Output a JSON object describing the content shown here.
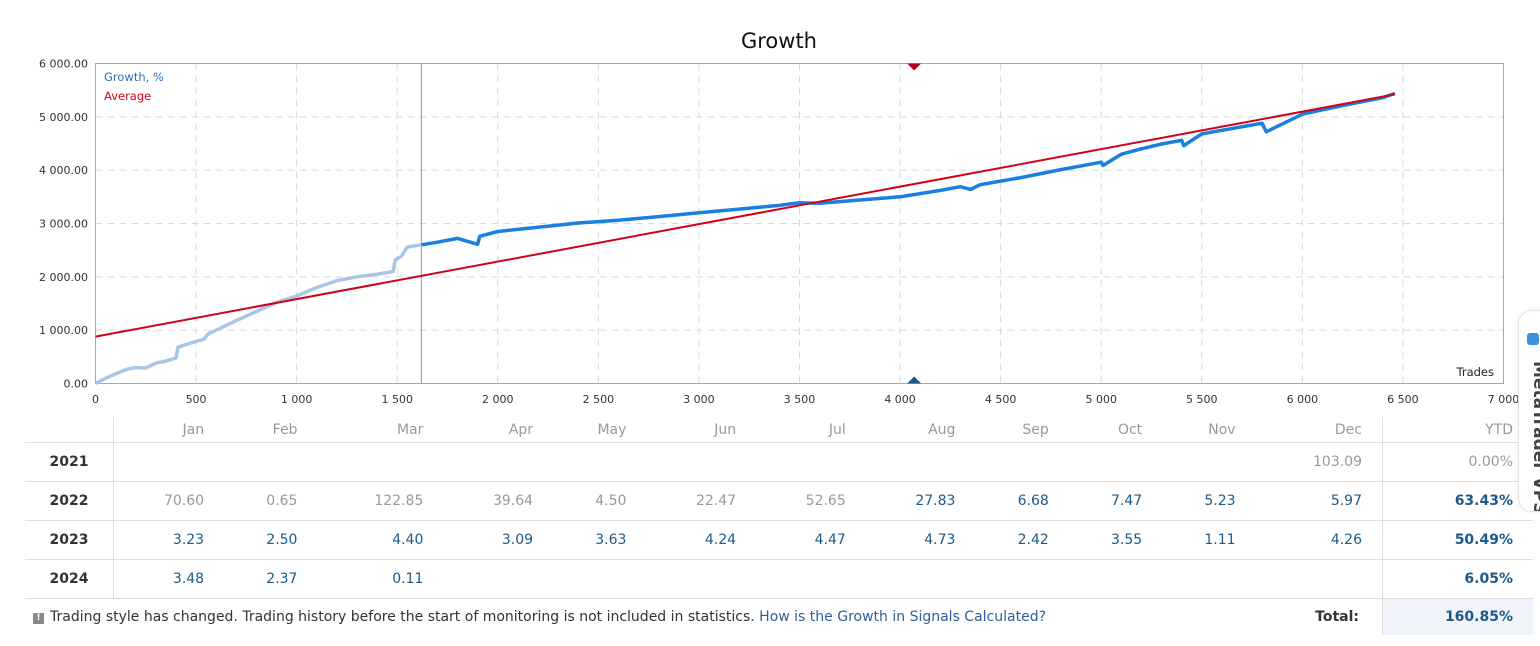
{
  "chart_data": {
    "type": "line",
    "title": "Growth",
    "xlabel": "Trades",
    "ylabel": "",
    "xlim": [
      0,
      7000
    ],
    "ylim": [
      0,
      6000
    ],
    "grid": true,
    "legend_position": "top-left",
    "x_ticks": [
      "0",
      "500",
      "1 000",
      "1 500",
      "2 000",
      "2 500",
      "3 000",
      "3 500",
      "4 000",
      "4 500",
      "5 000",
      "5 500",
      "6 000",
      "6 500",
      "7 000"
    ],
    "x_tick_values": [
      0,
      500,
      1000,
      1500,
      2000,
      2500,
      3000,
      3500,
      4000,
      4500,
      5000,
      5500,
      6000,
      6500,
      7000
    ],
    "y_ticks": [
      "0.00",
      "1 000.00",
      "2 000.00",
      "3 000.00",
      "4 000.00",
      "5 000.00",
      "6 000.00"
    ],
    "y_tick_values": [
      0,
      1000,
      2000,
      3000,
      4000,
      5000,
      6000
    ],
    "monitoring_start_trade": 1620,
    "marker_trade": 4070,
    "series": [
      {
        "name": "Growth, %",
        "color": "#1a7fe0",
        "history_color": "#a9c6e6",
        "x": [
          0,
          50,
          100,
          150,
          200,
          250,
          300,
          350,
          400,
          410,
          450,
          500,
          540,
          560,
          600,
          700,
          800,
          900,
          1000,
          1100,
          1200,
          1300,
          1400,
          1480,
          1490,
          1520,
          1550,
          1620,
          1700,
          1800,
          1900,
          1910,
          2000,
          2200,
          2400,
          2600,
          2800,
          3000,
          3200,
          3400,
          3500,
          3600,
          3800,
          4000,
          4100,
          4200,
          4300,
          4350,
          4400,
          4600,
          4800,
          5000,
          5010,
          5100,
          5200,
          5300,
          5400,
          5410,
          5500,
          5800,
          5820,
          6000,
          6200,
          6400,
          6460
        ],
        "values": [
          0,
          100,
          180,
          260,
          300,
          290,
          380,
          420,
          480,
          680,
          730,
          790,
          830,
          930,
          1000,
          1180,
          1350,
          1520,
          1640,
          1800,
          1930,
          2000,
          2050,
          2100,
          2320,
          2380,
          2560,
          2600,
          2650,
          2720,
          2610,
          2760,
          2850,
          2930,
          3010,
          3060,
          3130,
          3200,
          3270,
          3340,
          3390,
          3380,
          3440,
          3500,
          3560,
          3620,
          3690,
          3640,
          3730,
          3860,
          4010,
          4150,
          4090,
          4300,
          4400,
          4490,
          4560,
          4460,
          4680,
          4880,
          4720,
          5050,
          5210,
          5360,
          5440
        ]
      },
      {
        "name": "Average",
        "color": "#d0021b",
        "x": [
          0,
          6460
        ],
        "values": [
          880,
          5420
        ]
      }
    ]
  },
  "table": {
    "months": [
      "Jan",
      "Feb",
      "Mar",
      "Apr",
      "May",
      "Jun",
      "Jul",
      "Aug",
      "Sep",
      "Oct",
      "Nov",
      "Dec"
    ],
    "ytd_label": "YTD",
    "rows": [
      {
        "year": "2021",
        "values": [
          "",
          "",
          "",
          "",
          "",
          "",
          "",
          "",
          "",
          "",
          "",
          "103.09"
        ],
        "ytd": "0.00%"
      },
      {
        "year": "2022",
        "values": [
          "70.60",
          "0.65",
          "122.85",
          "39.64",
          "4.50",
          "22.47",
          "52.65",
          "27.83",
          "6.68",
          "7.47",
          "5.23",
          "5.97"
        ],
        "ytd": "63.43%"
      },
      {
        "year": "2023",
        "values": [
          "3.23",
          "2.50",
          "4.40",
          "3.09",
          "3.63",
          "4.24",
          "4.47",
          "4.73",
          "2.42",
          "3.55",
          "1.11",
          "4.26"
        ],
        "ytd": "50.49%"
      },
      {
        "year": "2024",
        "values": [
          "3.48",
          "2.37",
          "0.11",
          "",
          "",
          "",
          "",
          "",
          "",
          "",
          "",
          ""
        ],
        "ytd": "6.05%"
      }
    ]
  },
  "footer": {
    "note": "Trading style has changed. Trading history before the start of monitoring is not included in statistics.",
    "link": "How is the Growth in Signals Calculated?",
    "total_label": "Total:",
    "total_value": "160.85%"
  },
  "side_widget": {
    "label": "MetaTrader VPS"
  }
}
